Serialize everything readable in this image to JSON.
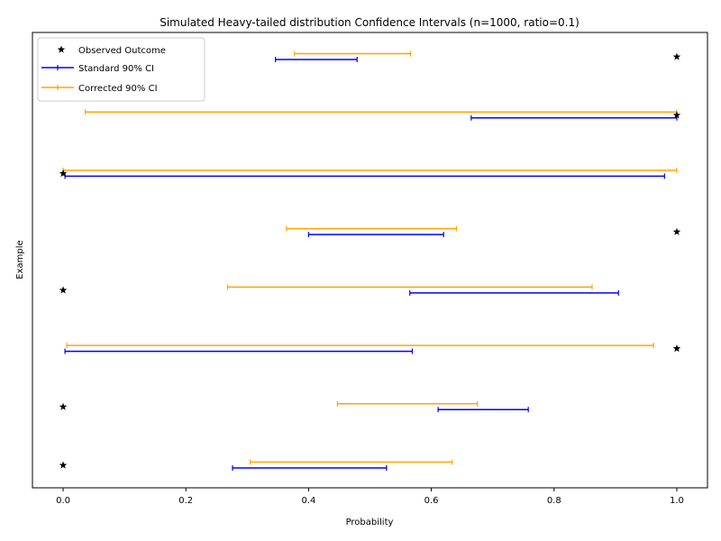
{
  "chart_data": {
    "type": "errorbar",
    "title": "Simulated Heavy-tailed distribution Confidence Intervals (n=1000, ratio=0.1)",
    "xlabel": "Probability",
    "ylabel": "Example",
    "xlim": [
      -0.05,
      1.05
    ],
    "xticks": [
      0.0,
      0.2,
      0.4,
      0.6,
      0.8,
      1.0
    ],
    "xtick_labels": [
      "0.0",
      "0.2",
      "0.4",
      "0.6",
      "0.8",
      "1.0"
    ],
    "grid": false,
    "legend_position": "upper-left",
    "legend": [
      "Observed Outcome",
      "Standard 90% CI",
      "Corrected 90% CI"
    ],
    "colors": {
      "observed": "#000000",
      "standard": "#0000ff",
      "corrected": "#ffa500"
    },
    "examples": [
      {
        "observed": 0,
        "standard": [
          0.276,
          0.527
        ],
        "corrected": [
          0.305,
          0.634
        ]
      },
      {
        "observed": 0,
        "standard": [
          0.611,
          0.758
        ],
        "corrected": [
          0.447,
          0.675
        ]
      },
      {
        "observed": 1,
        "standard": [
          0.003,
          0.569
        ],
        "corrected": [
          0.006,
          0.962
        ]
      },
      {
        "observed": 0,
        "standard": [
          0.565,
          0.905
        ],
        "corrected": [
          0.268,
          0.862
        ]
      },
      {
        "observed": 1,
        "standard": [
          0.4,
          0.62
        ],
        "corrected": [
          0.364,
          0.641
        ]
      },
      {
        "observed": 0,
        "standard": [
          0.003,
          0.98
        ],
        "corrected": [
          0.0,
          1.0
        ]
      },
      {
        "observed": 1,
        "standard": [
          0.665,
          1.0
        ],
        "corrected": [
          0.036,
          1.0
        ]
      },
      {
        "observed": 1,
        "standard": [
          0.346,
          0.479
        ],
        "corrected": [
          0.377,
          0.566
        ]
      }
    ]
  }
}
